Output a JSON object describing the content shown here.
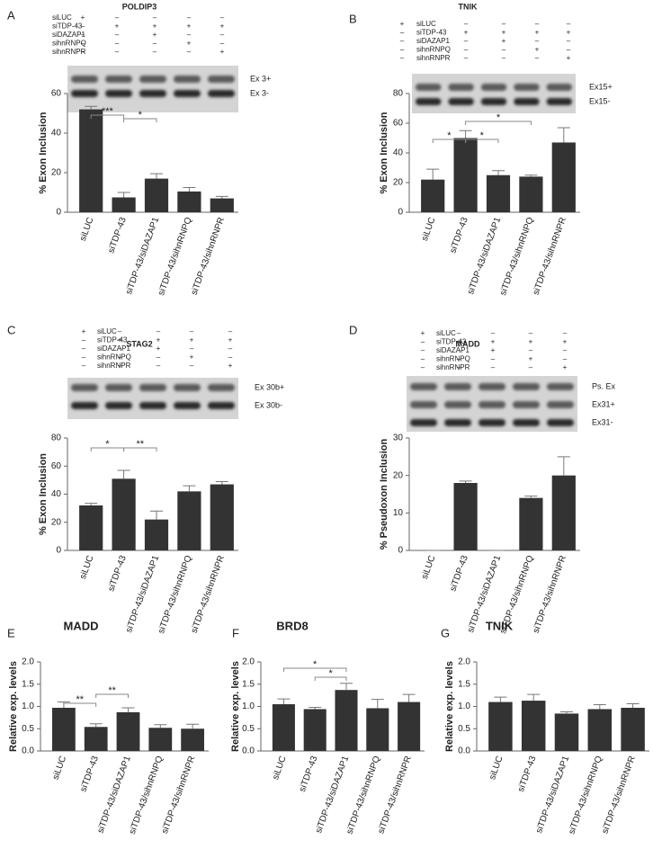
{
  "chart_data": [
    {
      "panel": "A",
      "type": "bar",
      "title": "POLDIP3",
      "ylabel": "% Exon Inclusion",
      "conditions": [
        {
          "label": "siLUC",
          "signs": [
            "+",
            "–",
            "–",
            "–",
            "–"
          ]
        },
        {
          "label": "siTDP-43",
          "signs": [
            "–",
            "+",
            "+",
            "+",
            "+"
          ]
        },
        {
          "label": "siDAZAP1",
          "signs": [
            "–",
            "–",
            "+",
            "–",
            "–"
          ]
        },
        {
          "label": "sihnRNPQ",
          "signs": [
            "–",
            "–",
            "–",
            "+",
            "–"
          ]
        },
        {
          "label": "sihnRNPR",
          "signs": [
            "–",
            "–",
            "–",
            "–",
            "+"
          ]
        }
      ],
      "band_labels": [
        "Ex 3+",
        "Ex 3-"
      ],
      "categories": [
        "siLUC",
        "siTDP-43",
        "siTDP-43/siDAZAP1",
        "siTDP-43/sihnRNPQ",
        "siTDP-43/sihnRNPR"
      ],
      "values": [
        52,
        7.5,
        17,
        10.5,
        7
      ],
      "errors": [
        1.5,
        2.5,
        2.5,
        2,
        1
      ],
      "color": "#333333",
      "ylim": [
        0,
        60
      ],
      "yticks": [
        0,
        20,
        40,
        60
      ],
      "significance": [
        "***",
        "*"
      ]
    },
    {
      "panel": "B",
      "type": "bar",
      "title": "TNIK",
      "ylabel": "% Exon Inclusion",
      "conditions": [
        {
          "label": "siLUC",
          "signs": [
            "+",
            "–",
            "–",
            "–",
            "–"
          ]
        },
        {
          "label": "siTDP-43",
          "signs": [
            "–",
            "+",
            "+",
            "+",
            "+"
          ]
        },
        {
          "label": "siDAZAP1",
          "signs": [
            "–",
            "–",
            "+",
            "–",
            "–"
          ]
        },
        {
          "label": "sihnRNPQ",
          "signs": [
            "–",
            "–",
            "–",
            "+",
            "–"
          ]
        },
        {
          "label": "sihnRNPR",
          "signs": [
            "–",
            "–",
            "–",
            "–",
            "+"
          ]
        }
      ],
      "band_labels": [
        "Ex15+",
        "Ex15-"
      ],
      "categories": [
        "siLUC",
        "siTDP-43",
        "siTDP-43/siDAZAP1",
        "siTDP-43/sihnRNPQ",
        "siTDP-43/sihnRNPR"
      ],
      "values": [
        22,
        50,
        25,
        24,
        47
      ],
      "errors": [
        7,
        5,
        3,
        1,
        10
      ],
      "color": "#333333",
      "ylim": [
        0,
        80
      ],
      "yticks": [
        0,
        20,
        40,
        60,
        80
      ],
      "significance": [
        "*",
        "*",
        "*"
      ]
    },
    {
      "panel": "C",
      "type": "bar",
      "title": "STAG2",
      "ylabel": "% Exon Inclusion",
      "conditions": [
        {
          "label": "siLUC",
          "signs": [
            "+",
            "–",
            "–",
            "–",
            "–"
          ]
        },
        {
          "label": "siTDP-43",
          "signs": [
            "–",
            "+",
            "+",
            "+",
            "+"
          ]
        },
        {
          "label": "siDAZAP1",
          "signs": [
            "–",
            "–",
            "+",
            "–",
            "–"
          ]
        },
        {
          "label": "sihnRNPQ",
          "signs": [
            "–",
            "–",
            "–",
            "+",
            "–"
          ]
        },
        {
          "label": "sihnRNPR",
          "signs": [
            "–",
            "–",
            "–",
            "–",
            "+"
          ]
        }
      ],
      "band_labels": [
        "Ex 30b+",
        "Ex 30b-"
      ],
      "categories": [
        "siLUC",
        "siTDP-43",
        "siTDP-43/siDAZAP1",
        "siTDP-43/sihnRNPQ",
        "siTDP-43/sihnRNPR"
      ],
      "values": [
        32,
        51,
        22,
        42,
        47
      ],
      "errors": [
        1.5,
        6,
        6,
        4,
        2
      ],
      "color": "#333333",
      "ylim": [
        0,
        80
      ],
      "yticks": [
        0,
        20,
        40,
        60,
        80
      ],
      "significance": [
        "*",
        "**"
      ]
    },
    {
      "panel": "D",
      "type": "bar",
      "title": "MADD",
      "ylabel": "% Pseudoxon Inclusion",
      "conditions": [
        {
          "label": "siLUC",
          "signs": [
            "+",
            "–",
            "–",
            "–",
            "–"
          ]
        },
        {
          "label": "siTDP-43",
          "signs": [
            "–",
            "+",
            "+",
            "+",
            "+"
          ]
        },
        {
          "label": "siDAZAP1",
          "signs": [
            "–",
            "–",
            "+",
            "–",
            "–"
          ]
        },
        {
          "label": "sihnRNPQ",
          "signs": [
            "–",
            "–",
            "–",
            "+",
            "–"
          ]
        },
        {
          "label": "sihnRNPR",
          "signs": [
            "–",
            "–",
            "–",
            "–",
            "+"
          ]
        }
      ],
      "band_labels": [
        "Ps. Ex",
        "Ex31+",
        "Ex31-"
      ],
      "categories": [
        "siLUC",
        "siTDP-43",
        "siTDP-43/siDAZAP1",
        "siTDP-43/sihnRNPQ",
        "siTDP-43/sihnRNPR"
      ],
      "values": [
        0,
        18,
        0,
        14,
        20
      ],
      "errors": [
        0,
        0.5,
        0,
        0.5,
        5
      ],
      "color": "#333333",
      "ylim": [
        0,
        30
      ],
      "yticks": [
        0,
        10,
        20,
        30
      ],
      "significance": []
    },
    {
      "panel": "E",
      "type": "bar",
      "title": "MADD",
      "ylabel": "Relative exp. levels",
      "categories": [
        "siLUC",
        "siTDP-43",
        "siTDP-43/siDAZAP1",
        "siTDP-43/sihnRNPQ",
        "siTDP-43/sihnRNPR"
      ],
      "values": [
        0.97,
        0.54,
        0.87,
        0.52,
        0.5
      ],
      "errors": [
        0.13,
        0.07,
        0.1,
        0.07,
        0.1
      ],
      "color": "#333333",
      "ylim": [
        0,
        2
      ],
      "yticks": [
        {
          "value": 0,
          "label": "0.0"
        },
        {
          "value": 0.5,
          "label": "0.5"
        },
        {
          "value": 1,
          "label": "1.0"
        },
        {
          "value": 1.5,
          "label": "1.5"
        },
        {
          "value": 2,
          "label": "2.0"
        }
      ],
      "significance": [
        "**",
        "**"
      ]
    },
    {
      "panel": "F",
      "type": "bar",
      "title": "BRD8",
      "ylabel": "Relative exp. levels",
      "categories": [
        "siLUC",
        "siTDP-43",
        "siTDP-43/siDAZAP1",
        "siTDP-43/sihnRNPQ",
        "siTDP-43/sihnRNPR"
      ],
      "values": [
        1.05,
        0.94,
        1.37,
        0.96,
        1.1
      ],
      "errors": [
        0.12,
        0.04,
        0.15,
        0.2,
        0.17
      ],
      "color": "#333333",
      "ylim": [
        0,
        2
      ],
      "yticks": [
        {
          "value": 0,
          "label": "0.0"
        },
        {
          "value": 0.5,
          "label": "0.5"
        },
        {
          "value": 1,
          "label": "1.0"
        },
        {
          "value": 1.5,
          "label": "1.5"
        },
        {
          "value": 2,
          "label": "2.0"
        }
      ],
      "significance": [
        "*",
        "*"
      ]
    },
    {
      "panel": "G",
      "type": "bar",
      "title": "TNIK",
      "ylabel": "Relative exp. levels",
      "categories": [
        "siLUC",
        "siTDP-43",
        "siTDP-43/siDAZAP1",
        "siTDP-43/sihnRNPQ",
        "siTDP-43/sihnRNPR"
      ],
      "values": [
        1.1,
        1.13,
        0.84,
        0.94,
        0.97
      ],
      "errors": [
        0.11,
        0.14,
        0.04,
        0.1,
        0.09
      ],
      "color": "#333333",
      "ylim": [
        0,
        2
      ],
      "yticks": [
        {
          "value": 0,
          "label": "0.0"
        },
        {
          "value": 0.5,
          "label": "0.5"
        },
        {
          "value": 1,
          "label": "1.0"
        },
        {
          "value": 1.5,
          "label": "1.5"
        },
        {
          "value": 2,
          "label": "2.0"
        }
      ],
      "significance": []
    }
  ]
}
